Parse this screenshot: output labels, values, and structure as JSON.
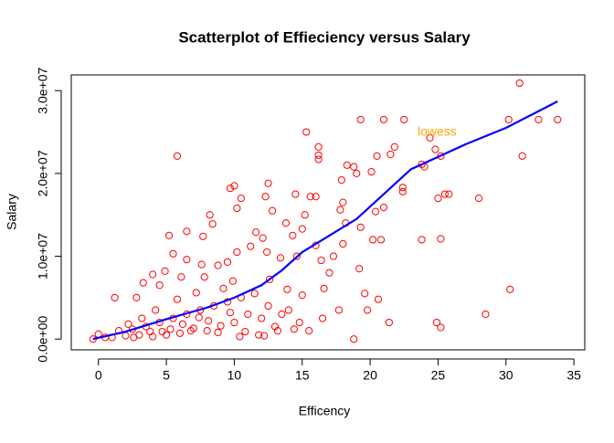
{
  "chart_data": {
    "type": "scatter",
    "title": "Scatterplot of Effieciency versus Salary",
    "x_label": "Efficency",
    "y_label": "Salary",
    "annotation": "lowess",
    "annotation_color": "#ffa500",
    "xlim": [
      -2,
      35.8
    ],
    "ylim": [
      -1300000.0,
      31900000.0
    ],
    "xticks": [
      0,
      5,
      10,
      15,
      20,
      25,
      30,
      35
    ],
    "yticks": [
      {
        "value": 0,
        "label": "0.0e+00"
      },
      {
        "value": 10000000.0,
        "label": "1.0e+07"
      },
      {
        "value": 20000000.0,
        "label": "2.0e+07"
      },
      {
        "value": 30000000.0,
        "label": "3.0e+07"
      }
    ],
    "series": [
      {
        "color": "#ff0000",
        "marker": "open-circle",
        "x": [
          5.8,
          15.3,
          16.2,
          16.2,
          16.2,
          19.3,
          21,
          22.5,
          31,
          30.2,
          32.4,
          33.8,
          31.2,
          24.4,
          24.8,
          25.2,
          20.5,
          21.5,
          21.8,
          20.1,
          18.8,
          18.3,
          19,
          17.9,
          22.4,
          22.4,
          24,
          23.8,
          25,
          25.5,
          25.8,
          28,
          25.2,
          23.8,
          20.2,
          20.8,
          20.4,
          21,
          18,
          17.8,
          18.2,
          19.3,
          15.2,
          15.6,
          16,
          14.5,
          13.8,
          12.5,
          12.3,
          12.8,
          10.5,
          10,
          9.7,
          8.2,
          8.4,
          7.7,
          5.2,
          6.5,
          10.2,
          11.6,
          12.1,
          14.3,
          15,
          16,
          17.3,
          18,
          17,
          16.4,
          14.6,
          13.4,
          12.4,
          11.2,
          10.2,
          9.5,
          8.8,
          7.6,
          6.5,
          5.5,
          4.9,
          4,
          3.3,
          2.8,
          1.2,
          4.5,
          6.1,
          7.8,
          9.9,
          12.6,
          13.9,
          15,
          16.6,
          19.2,
          20.6,
          19.6,
          21.4,
          24.9,
          25.2,
          28.5,
          30.3,
          19.8,
          17.7,
          16.5,
          14.8,
          13,
          12,
          11,
          10,
          9,
          8,
          7,
          6,
          5,
          4,
          3,
          2,
          1,
          0,
          -0.4,
          0.5,
          1.5,
          2.5,
          3.5,
          4.5,
          5.5,
          6.5,
          7.5,
          8.5,
          9.5,
          10.5,
          11.5,
          12.5,
          13.5,
          14,
          6.8,
          8.8,
          10.8,
          11.8,
          13.2,
          15.5,
          18.8,
          3.2,
          2.2,
          4.2,
          5.8,
          7.2,
          9.2,
          8.1,
          6.2,
          7.4,
          9.7,
          3.8,
          2.6,
          5.3,
          4.7,
          10.4,
          12.2,
          14.4
        ],
        "values": [
          22100000.0,
          25000000.0,
          23200000.0,
          22200000.0,
          21700000.0,
          26500000.0,
          26500000.0,
          26500000.0,
          30900000.0,
          26500000.0,
          26500000.0,
          26500000.0,
          22100000.0,
          24300000.0,
          22900000.0,
          22100000.0,
          22100000.0,
          22300000.0,
          23200000.0,
          20200000.0,
          20800000.0,
          21000000.0,
          20000000.0,
          19200000.0,
          18300000.0,
          17800000.0,
          20800000.0,
          21100000.0,
          17000000.0,
          17500000.0,
          17500000.0,
          17000000.0,
          12100000.0,
          12000000.0,
          12000000.0,
          12000000.0,
          15400000.0,
          15900000.0,
          16500000.0,
          15600000.0,
          14000000.0,
          13500000.0,
          15000000.0,
          17200000.0,
          17200000.0,
          17500000.0,
          14000000.0,
          18800000.0,
          17200000.0,
          15500000.0,
          17000000.0,
          18500000.0,
          18200000.0,
          15000000.0,
          13900000.0,
          12400000.0,
          12500000.0,
          13000000.0,
          15800000.0,
          12900000.0,
          12200000.0,
          12500000.0,
          13300000.0,
          11300000.0,
          10000000.0,
          11500000.0,
          8000000.0,
          9500000.0,
          10000000.0,
          9800000.0,
          10500000.0,
          11200000.0,
          10500000.0,
          9300000.0,
          8900000.0,
          9000000.0,
          9600000.0,
          10300000.0,
          8200000.0,
          7800000.0,
          6800000.0,
          5000000.0,
          5000000.0,
          6500000.0,
          7500000.0,
          7500000.0,
          7000000.0,
          7200000.0,
          6000000.0,
          5300000.0,
          6100000.0,
          8500000.0,
          4800000.0,
          5500000.0,
          2000000.0,
          2000000.0,
          1400000.0,
          3000000.0,
          6000000.0,
          3500000.0,
          3500000.0,
          2500000.0,
          2000000.0,
          1500000.0,
          2500000.0,
          3000000.0,
          2000000.0,
          1600000.0,
          1000000.0,
          1300000.0,
          700000.0,
          500000.0,
          300000.0,
          500000.0,
          400000.0,
          200000.0,
          600000.0,
          0,
          200000.0,
          1000000.0,
          1200000.0,
          1500000.0,
          2000000.0,
          2500000.0,
          3000000.0,
          3500000.0,
          4000000.0,
          4500000.0,
          5000000.0,
          5500000.0,
          4000000.0,
          3000000.0,
          3500000.0,
          1000000.0,
          800000.0,
          900000.0,
          500000.0,
          1000000.0,
          1000000.0,
          0,
          2500000.0,
          1800000.0,
          3500000.0,
          4800000.0,
          5600000.0,
          6100000.0,
          2200000.0,
          1800000.0,
          2600000.0,
          3200000.0,
          900000.0,
          200000.0,
          1200000.0,
          900000.0,
          300000.0,
          400000.0,
          1200000.0
        ]
      },
      {
        "type": "line",
        "color": "#0000ff",
        "x": [
          -0.4,
          2,
          5,
          8,
          10,
          12,
          13.5,
          15,
          17,
          19,
          21,
          23,
          25,
          27,
          30,
          33.8
        ],
        "values": [
          0,
          900000.0,
          2400000.0,
          3800000.0,
          5000000.0,
          6500000.0,
          8300000.0,
          10500000.0,
          12500000.0,
          14500000.0,
          17500000.0,
          20500000.0,
          22000000.0,
          23500000.0,
          25500000.0,
          28700000.0
        ]
      }
    ]
  }
}
